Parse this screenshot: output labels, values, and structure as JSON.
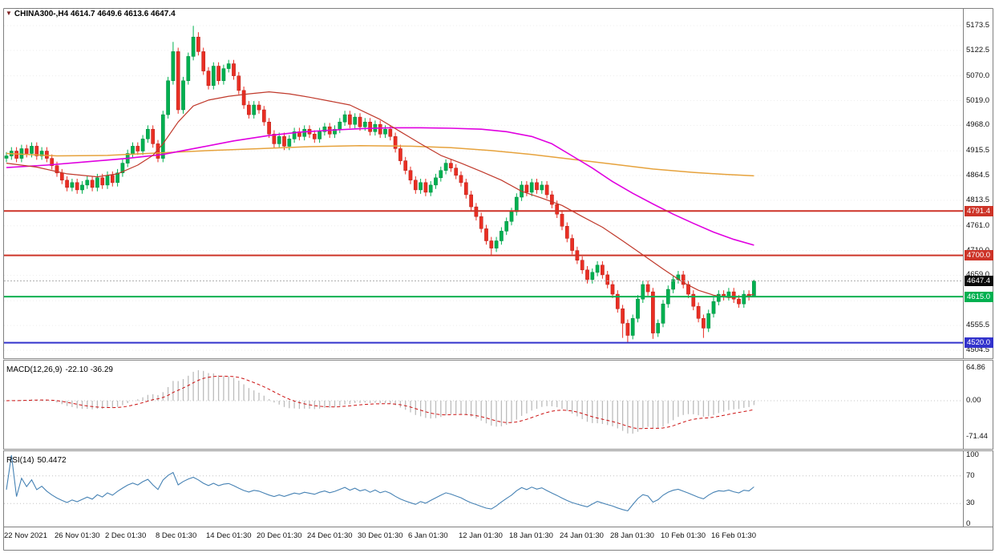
{
  "header": {
    "marker": "▼",
    "title": "CHINA300-,H4",
    "ohlc": "4614.7 4649.6 4613.6 4647.4"
  },
  "macd_panel": {
    "label": "MACD(12,26,9)",
    "values": "-22.10 -36.29",
    "axis_labels": [
      {
        "text": "64.86",
        "value": 64.86
      },
      {
        "text": "0.00",
        "value": 0
      },
      {
        "text": "-71.44",
        "value": -71.44
      }
    ]
  },
  "rsi_panel": {
    "label": "RSI(14)",
    "value": "50.4472",
    "line_color": "#4682b4",
    "levels": [
      70,
      30
    ],
    "axis_labels": [
      {
        "text": "100",
        "value": 100
      },
      {
        "text": "70",
        "value": 70
      },
      {
        "text": "30",
        "value": 30
      },
      {
        "text": "0",
        "value": 0
      }
    ]
  },
  "price_axis": {
    "labels": [
      "5173.5",
      "5122.5",
      "5070.0",
      "5019.0",
      "4968.0",
      "4915.5",
      "4864.5",
      "4813.5",
      "4761.0",
      "4710.0",
      "4659.0",
      "4606.5",
      "4555.5",
      "4504.5"
    ]
  },
  "time_axis": {
    "labels": [
      "22 Nov 2021",
      "26 Nov 01:30",
      "2 Dec 01:30",
      "8 Dec 01:30",
      "14 Dec 01:30",
      "20 Dec 01:30",
      "24 Dec 01:30",
      "30 Dec 01:30",
      "6 Jan 01:30",
      "12 Jan 01:30",
      "18 Jan 01:30",
      "24 Jan 01:30",
      "28 Jan 01:30",
      "10 Feb 01:30",
      "16 Feb 01:30"
    ]
  },
  "hlines": [
    {
      "label": "4791.4",
      "value": 4791.4,
      "color": "#cd3428",
      "width": 2
    },
    {
      "label": "4700.0",
      "value": 4700.0,
      "color": "#cd3428",
      "width": 2
    },
    {
      "label": "4615.0",
      "value": 4615.0,
      "color": "#00b050",
      "width": 2
    },
    {
      "label": "4520.0",
      "value": 4520.0,
      "color": "#3333cc",
      "width": 2
    }
  ],
  "current_price": {
    "label": "4647.4",
    "value": 4647.4
  },
  "colors": {
    "up": "#00b050",
    "upStroke": "#028a41",
    "down": "#ea2e23",
    "downStroke": "#b3211a",
    "macdHist": "#bcbcbc",
    "macdSignal": "#cc1111",
    "grid": "#ededed",
    "levelDotted": "#c4c4c4",
    "currentLine": "#b0b0b0",
    "frame": "#808080",
    "currentBadge": "#0a0a0a"
  },
  "chart_data": {
    "type": "candlestick",
    "title": "CHINA300-,H4",
    "symbol": "CHINA300-",
    "timeframe": "H4",
    "ylim": [
      4504.5,
      5173.5
    ],
    "horizontal_levels": [
      4791.4,
      4700.0,
      4615.0,
      4520.0
    ],
    "last_ohlc": {
      "open": 4614.7,
      "high": 4649.6,
      "low": 4613.6,
      "close": 4647.4
    },
    "ohlc": [
      [
        4900,
        4913,
        4892,
        4905
      ],
      [
        4905,
        4923,
        4897,
        4915
      ],
      [
        4915,
        4923,
        4892,
        4900
      ],
      [
        4900,
        4928,
        4892,
        4920
      ],
      [
        4920,
        4928,
        4902,
        4910
      ],
      [
        4910,
        4933,
        4902,
        4925
      ],
      [
        4925,
        4933,
        4897,
        4905
      ],
      [
        4905,
        4923,
        4897,
        4915
      ],
      [
        4915,
        4923,
        4892,
        4900
      ],
      [
        4900,
        4908,
        4877,
        4885
      ],
      [
        4885,
        4893,
        4862,
        4870
      ],
      [
        4870,
        4878,
        4847,
        4855
      ],
      [
        4855,
        4863,
        4832,
        4840
      ],
      [
        4840,
        4858,
        4832,
        4850
      ],
      [
        4850,
        4858,
        4827,
        4835
      ],
      [
        4835,
        4853,
        4827,
        4845
      ],
      [
        4845,
        4863,
        4837,
        4855
      ],
      [
        4855,
        4863,
        4832,
        4840
      ],
      [
        4840,
        4868,
        4832,
        4860
      ],
      [
        4860,
        4868,
        4837,
        4845
      ],
      [
        4845,
        4873,
        4837,
        4865
      ],
      [
        4865,
        4873,
        4842,
        4850
      ],
      [
        4850,
        4878,
        4842,
        4870
      ],
      [
        4870,
        4898,
        4862,
        4890
      ],
      [
        4890,
        4918,
        4882,
        4910
      ],
      [
        4910,
        4933,
        4902,
        4925
      ],
      [
        4925,
        4933,
        4907,
        4915
      ],
      [
        4915,
        4948,
        4907,
        4940
      ],
      [
        4940,
        4968,
        4932,
        4960
      ],
      [
        4960,
        4968,
        4922,
        4930
      ],
      [
        4930,
        4938,
        4892,
        4900
      ],
      [
        4900,
        4998,
        4892,
        4990
      ],
      [
        4990,
        5068,
        4982,
        5060
      ],
      [
        5060,
        5140,
        5052,
        5120
      ],
      [
        5120,
        5128,
        4992,
        5000
      ],
      [
        5000,
        5068,
        4992,
        5060
      ],
      [
        5060,
        5118,
        5052,
        5110
      ],
      [
        5110,
        5173,
        5102,
        5150
      ],
      [
        5150,
        5160,
        5112,
        5120
      ],
      [
        5120,
        5128,
        5072,
        5080
      ],
      [
        5080,
        5088,
        5042,
        5050
      ],
      [
        5050,
        5098,
        5042,
        5090
      ],
      [
        5090,
        5098,
        5052,
        5060
      ],
      [
        5060,
        5093,
        5052,
        5085
      ],
      [
        5085,
        5103,
        5077,
        5095
      ],
      [
        5095,
        5103,
        5062,
        5070
      ],
      [
        5070,
        5078,
        5032,
        5040
      ],
      [
        5040,
        5048,
        5002,
        5010
      ],
      [
        5010,
        5018,
        4982,
        4990
      ],
      [
        4990,
        5018,
        4982,
        5010
      ],
      [
        5010,
        5018,
        4992,
        5000
      ],
      [
        5000,
        5008,
        4967,
        4975
      ],
      [
        4975,
        4983,
        4942,
        4950
      ],
      [
        4950,
        4958,
        4922,
        4930
      ],
      [
        4930,
        4953,
        4922,
        4945
      ],
      [
        4945,
        4953,
        4917,
        4925
      ],
      [
        4925,
        4948,
        4917,
        4940
      ],
      [
        4940,
        4963,
        4932,
        4955
      ],
      [
        4955,
        4963,
        4937,
        4945
      ],
      [
        4945,
        4968,
        4937,
        4960
      ],
      [
        4960,
        4968,
        4942,
        4950
      ],
      [
        4950,
        4958,
        4932,
        4940
      ],
      [
        4940,
        4963,
        4932,
        4955
      ],
      [
        4955,
        4973,
        4947,
        4965
      ],
      [
        4965,
        4973,
        4942,
        4950
      ],
      [
        4950,
        4968,
        4942,
        4960
      ],
      [
        4960,
        4983,
        4952,
        4975
      ],
      [
        4975,
        4998,
        4967,
        4990
      ],
      [
        4990,
        4998,
        4962,
        4970
      ],
      [
        4970,
        4993,
        4962,
        4985
      ],
      [
        4985,
        4993,
        4957,
        4965
      ],
      [
        4965,
        4983,
        4957,
        4975
      ],
      [
        4975,
        4983,
        4947,
        4955
      ],
      [
        4955,
        4978,
        4947,
        4970
      ],
      [
        4970,
        4978,
        4942,
        4950
      ],
      [
        4950,
        4968,
        4942,
        4960
      ],
      [
        4960,
        4968,
        4937,
        4945
      ],
      [
        4945,
        4953,
        4912,
        4920
      ],
      [
        4920,
        4928,
        4887,
        4895
      ],
      [
        4895,
        4903,
        4867,
        4875
      ],
      [
        4875,
        4883,
        4847,
        4855
      ],
      [
        4855,
        4863,
        4827,
        4835
      ],
      [
        4835,
        4858,
        4827,
        4850
      ],
      [
        4850,
        4858,
        4822,
        4830
      ],
      [
        4830,
        4853,
        4822,
        4845
      ],
      [
        4845,
        4868,
        4837,
        4860
      ],
      [
        4860,
        4883,
        4852,
        4875
      ],
      [
        4875,
        4898,
        4867,
        4890
      ],
      [
        4890,
        4898,
        4872,
        4880
      ],
      [
        4880,
        4888,
        4857,
        4865
      ],
      [
        4865,
        4873,
        4842,
        4850
      ],
      [
        4850,
        4858,
        4817,
        4825
      ],
      [
        4825,
        4833,
        4792,
        4800
      ],
      [
        4800,
        4808,
        4772,
        4780
      ],
      [
        4780,
        4788,
        4747,
        4755
      ],
      [
        4755,
        4763,
        4722,
        4730
      ],
      [
        4730,
        4738,
        4700,
        4715
      ],
      [
        4715,
        4738,
        4707,
        4730
      ],
      [
        4730,
        4758,
        4722,
        4750
      ],
      [
        4750,
        4778,
        4742,
        4770
      ],
      [
        4770,
        4798,
        4762,
        4790
      ],
      [
        4790,
        4828,
        4782,
        4820
      ],
      [
        4820,
        4853,
        4812,
        4845
      ],
      [
        4845,
        4853,
        4822,
        4830
      ],
      [
        4830,
        4858,
        4822,
        4850
      ],
      [
        4850,
        4858,
        4827,
        4835
      ],
      [
        4835,
        4853,
        4827,
        4845
      ],
      [
        4845,
        4853,
        4817,
        4825
      ],
      [
        4825,
        4833,
        4797,
        4805
      ],
      [
        4805,
        4813,
        4777,
        4785
      ],
      [
        4785,
        4793,
        4752,
        4760
      ],
      [
        4760,
        4768,
        4727,
        4735
      ],
      [
        4735,
        4743,
        4702,
        4710
      ],
      [
        4710,
        4718,
        4682,
        4690
      ],
      [
        4690,
        4698,
        4662,
        4670
      ],
      [
        4670,
        4678,
        4642,
        4650
      ],
      [
        4650,
        4673,
        4642,
        4665
      ],
      [
        4665,
        4688,
        4657,
        4680
      ],
      [
        4680,
        4688,
        4652,
        4660
      ],
      [
        4660,
        4668,
        4632,
        4640
      ],
      [
        4640,
        4648,
        4612,
        4620
      ],
      [
        4620,
        4628,
        4582,
        4590
      ],
      [
        4590,
        4598,
        4530,
        4560
      ],
      [
        4560,
        4568,
        4520,
        4535
      ],
      [
        4535,
        4578,
        4527,
        4570
      ],
      [
        4570,
        4618,
        4562,
        4610
      ],
      [
        4610,
        4648,
        4602,
        4640
      ],
      [
        4640,
        4648,
        4617,
        4625
      ],
      [
        4625,
        4633,
        4528,
        4540
      ],
      [
        4540,
        4568,
        4532,
        4560
      ],
      [
        4560,
        4608,
        4552,
        4600
      ],
      [
        4600,
        4638,
        4592,
        4630
      ],
      [
        4630,
        4658,
        4622,
        4650
      ],
      [
        4650,
        4668,
        4642,
        4660
      ],
      [
        4660,
        4668,
        4632,
        4640
      ],
      [
        4640,
        4648,
        4612,
        4620
      ],
      [
        4620,
        4628,
        4587,
        4595
      ],
      [
        4595,
        4603,
        4562,
        4570
      ],
      [
        4570,
        4578,
        4530,
        4550
      ],
      [
        4550,
        4588,
        4542,
        4580
      ],
      [
        4580,
        4613,
        4572,
        4605
      ],
      [
        4605,
        4628,
        4597,
        4620
      ],
      [
        4620,
        4628,
        4607,
        4615
      ],
      [
        4615,
        4633,
        4607,
        4625
      ],
      [
        4625,
        4633,
        4602,
        4610
      ],
      [
        4610,
        4618,
        4592,
        4600
      ],
      [
        4600,
        4628,
        4592,
        4620
      ],
      [
        4620,
        4628,
        4607,
        4615
      ],
      [
        4614.7,
        4649.6,
        4613.6,
        4647.4
      ]
    ],
    "moving_averages": [
      {
        "name": "ma-slow-orange",
        "color": "#e6a23c",
        "width": 1.5,
        "points": [
          [
            0,
            4910
          ],
          [
            10,
            4905
          ],
          [
            20,
            4906
          ],
          [
            30,
            4911
          ],
          [
            40,
            4916
          ],
          [
            50,
            4920
          ],
          [
            60,
            4924
          ],
          [
            70,
            4926
          ],
          [
            80,
            4925
          ],
          [
            88,
            4922
          ],
          [
            96,
            4916
          ],
          [
            104,
            4908
          ],
          [
            112,
            4898
          ],
          [
            120,
            4888
          ],
          [
            128,
            4878
          ],
          [
            136,
            4871
          ],
          [
            142,
            4867
          ],
          [
            148,
            4864
          ]
        ]
      },
      {
        "name": "ma-medium-magenta",
        "color": "#e000e0",
        "width": 1.6,
        "points": [
          [
            0,
            4881
          ],
          [
            8,
            4886
          ],
          [
            16,
            4893
          ],
          [
            24,
            4900
          ],
          [
            31,
            4908
          ],
          [
            38,
            4922
          ],
          [
            45,
            4936
          ],
          [
            52,
            4947
          ],
          [
            58,
            4954
          ],
          [
            64,
            4958
          ],
          [
            70,
            4961
          ],
          [
            76,
            4963
          ],
          [
            82,
            4963
          ],
          [
            88,
            4962
          ],
          [
            94,
            4960
          ],
          [
            99,
            4955
          ],
          [
            104,
            4945
          ],
          [
            108,
            4930
          ],
          [
            112,
            4905
          ],
          [
            116,
            4880
          ],
          [
            120,
            4852
          ],
          [
            124,
            4828
          ],
          [
            128,
            4806
          ],
          [
            132,
            4785
          ],
          [
            136,
            4766
          ],
          [
            140,
            4748
          ],
          [
            144,
            4733
          ],
          [
            148,
            4721
          ]
        ]
      },
      {
        "name": "ma-fast-red",
        "color": "#c0392b",
        "width": 1.2,
        "points": [
          [
            0,
            4890
          ],
          [
            6,
            4882
          ],
          [
            12,
            4868
          ],
          [
            18,
            4862
          ],
          [
            22,
            4868
          ],
          [
            26,
            4886
          ],
          [
            29,
            4906
          ],
          [
            31,
            4930
          ],
          [
            34,
            4975
          ],
          [
            37,
            5008
          ],
          [
            40,
            5020
          ],
          [
            44,
            5028
          ],
          [
            48,
            5033
          ],
          [
            52,
            5037
          ],
          [
            56,
            5033
          ],
          [
            60,
            5026
          ],
          [
            64,
            5018
          ],
          [
            68,
            5010
          ],
          [
            71,
            4995
          ],
          [
            74,
            4980
          ],
          [
            78,
            4955
          ],
          [
            82,
            4930
          ],
          [
            86,
            4906
          ],
          [
            90,
            4890
          ],
          [
            94,
            4873
          ],
          [
            98,
            4855
          ],
          [
            102,
            4832
          ],
          [
            106,
            4818
          ],
          [
            110,
            4803
          ],
          [
            114,
            4780
          ],
          [
            118,
            4758
          ],
          [
            122,
            4730
          ],
          [
            126,
            4701
          ],
          [
            130,
            4672
          ],
          [
            134,
            4644
          ],
          [
            137,
            4628
          ],
          [
            140,
            4618
          ],
          [
            143,
            4613
          ],
          [
            146,
            4615
          ],
          [
            148,
            4620
          ]
        ]
      }
    ],
    "macd": {
      "fast": 12,
      "slow": 26,
      "signal": 9,
      "current": [
        -22.1,
        -36.29
      ],
      "range": [
        -71.44,
        64.86
      ]
    },
    "rsi": {
      "period": 14,
      "current": 50.4472,
      "range": [
        0,
        100
      ],
      "levels": [
        70,
        30
      ]
    }
  }
}
